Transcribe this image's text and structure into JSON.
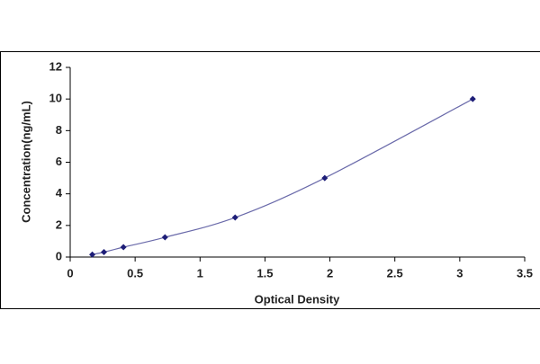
{
  "chart_data": {
    "type": "scatter",
    "x_label": "Optical Density",
    "y_label": "Concentration(ng/mL)",
    "x": [
      0.17,
      0.26,
      0.41,
      0.73,
      1.27,
      1.96,
      3.1
    ],
    "values": [
      0.156,
      0.312,
      0.625,
      1.25,
      2.5,
      5,
      10
    ],
    "color": "#1e1e78",
    "line_color": "#6a6aaa",
    "xlim": [
      0,
      3.5
    ],
    "xticks": [
      0,
      0.5,
      1,
      1.5,
      2,
      2.5,
      3,
      3.5
    ],
    "ylim": [
      0,
      12
    ],
    "yticks": [
      0,
      2,
      4,
      6,
      8,
      10,
      12
    ],
    "grid": false
  }
}
